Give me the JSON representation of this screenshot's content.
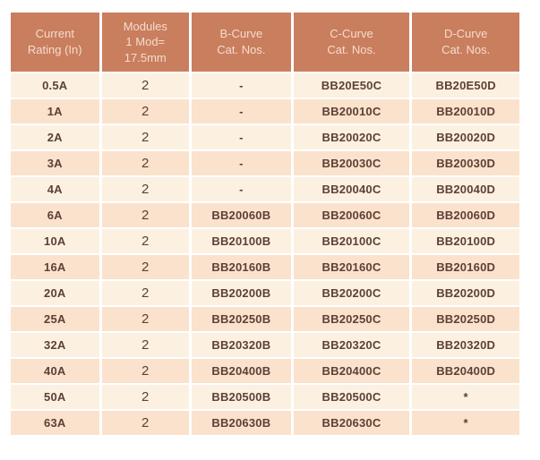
{
  "colors": {
    "header_bg": "#c97e5e",
    "header_text": "#f6dccd",
    "row_light": "#fcf1e1",
    "row_dark": "#fae2cc",
    "cell_text": "#5d4037",
    "page_bg": "#ffffff"
  },
  "table": {
    "columns": [
      {
        "id": "current-rating",
        "label": "Current\nRating (In)"
      },
      {
        "id": "modules",
        "label": "Modules\n1 Mod=\n17.5mm"
      },
      {
        "id": "b-curve",
        "label": "B-Curve\nCat. Nos."
      },
      {
        "id": "c-curve",
        "label": "C-Curve\nCat. Nos."
      },
      {
        "id": "d-curve",
        "label": "D-Curve\nCat. Nos."
      }
    ],
    "rows": [
      [
        "0.5A",
        "2",
        "-",
        "BB20E50C",
        "BB20E50D"
      ],
      [
        "1A",
        "2",
        "-",
        "BB20010C",
        "BB20010D"
      ],
      [
        "2A",
        "2",
        "-",
        "BB20020C",
        "BB20020D"
      ],
      [
        "3A",
        "2",
        "-",
        "BB20030C",
        "BB20030D"
      ],
      [
        "4A",
        "2",
        "-",
        "BB20040C",
        "BB20040D"
      ],
      [
        "6A",
        "2",
        "BB20060B",
        "BB20060C",
        "BB20060D"
      ],
      [
        "10A",
        "2",
        "BB20100B",
        "BB20100C",
        "BB20100D"
      ],
      [
        "16A",
        "2",
        "BB20160B",
        "BB20160C",
        "BB20160D"
      ],
      [
        "20A",
        "2",
        "BB20200B",
        "BB20200C",
        "BB20200D"
      ],
      [
        "25A",
        "2",
        "BB20250B",
        "BB20250C",
        "BB20250D"
      ],
      [
        "32A",
        "2",
        "BB20320B",
        "BB20320C",
        "BB20320D"
      ],
      [
        "40A",
        "2",
        "BB20400B",
        "BB20400C",
        "BB20400D"
      ],
      [
        "50A",
        "2",
        "BB20500B",
        "BB20500C",
        "*"
      ],
      [
        "63A",
        "2",
        "BB20630B",
        "BB20630C",
        "*"
      ]
    ]
  }
}
